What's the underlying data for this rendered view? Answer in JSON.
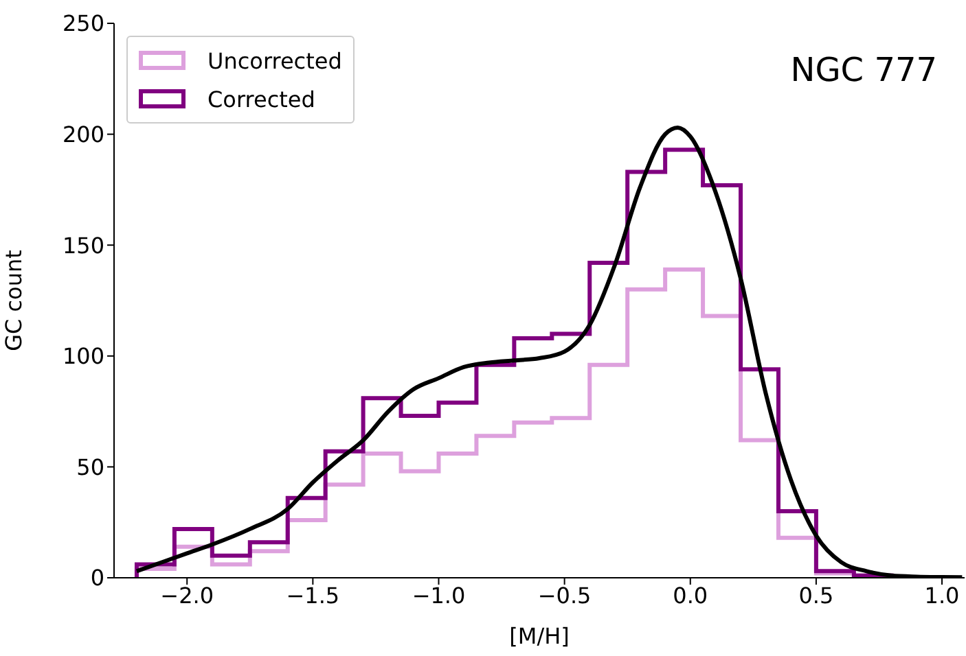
{
  "chart_data": {
    "type": "histogram",
    "xlabel": "[M/H]",
    "ylabel": "GC count",
    "annotations": [
      "NGC 777"
    ],
    "bins": [
      -2.2,
      -2.05,
      -1.9,
      -1.75,
      -1.6,
      -1.45,
      -1.3,
      -1.15,
      -1.0,
      -0.85,
      -0.7,
      -0.55,
      -0.4,
      -0.25,
      -0.1,
      0.05,
      0.2,
      0.35,
      0.5,
      0.65,
      0.8
    ],
    "series": [
      {
        "name": "Uncorrected",
        "color": "#dda0dd",
        "values": [
          4,
          14,
          6,
          12,
          26,
          42,
          56,
          48,
          56,
          64,
          70,
          72,
          96,
          130,
          139,
          118,
          62,
          18,
          2,
          1
        ]
      },
      {
        "name": "Corrected",
        "color": "#800080",
        "values": [
          6,
          22,
          10,
          16,
          36,
          57,
          81,
          73,
          79,
          96,
          108,
          110,
          142,
          183,
          193,
          177,
          94,
          30,
          3,
          1
        ]
      },
      {
        "type": "line",
        "color": "#000000",
        "x": [
          -2.2,
          -2.0,
          -1.9,
          -1.75,
          -1.6,
          -1.5,
          -1.4,
          -1.3,
          -1.2,
          -1.1,
          -1.0,
          -0.9,
          -0.8,
          -0.7,
          -0.6,
          -0.5,
          -0.4,
          -0.3,
          -0.2,
          -0.1,
          -0.05,
          0.0,
          0.1,
          0.2,
          0.3,
          0.4,
          0.5,
          0.6,
          0.7,
          0.8,
          0.9,
          1.0,
          1.08
        ],
        "values": [
          3,
          11,
          15,
          22,
          31,
          43,
          53,
          62,
          75,
          85,
          90,
          95,
          97,
          98,
          99,
          102,
          114,
          141,
          176,
          200,
          203,
          199,
          174,
          135,
          83,
          44,
          19,
          7,
          3,
          1,
          0.5,
          0.3,
          0.2
        ]
      }
    ],
    "xlim": [
      -2.29,
      1.09
    ],
    "ylim": [
      0,
      250
    ],
    "xticks": [
      {
        "value": -2.0,
        "label": "−2.0"
      },
      {
        "value": -1.5,
        "label": "−1.5"
      },
      {
        "value": -1.0,
        "label": "−1.0"
      },
      {
        "value": -0.5,
        "label": "−0.5"
      },
      {
        "value": 0.0,
        "label": "0.0"
      },
      {
        "value": 0.5,
        "label": "0.5"
      },
      {
        "value": 1.0,
        "label": "1.0"
      }
    ],
    "yticks": [
      0,
      50,
      100,
      150,
      200,
      250
    ],
    "legend": "top left",
    "grid": false,
    "line_style": "solid",
    "marker": "none"
  }
}
